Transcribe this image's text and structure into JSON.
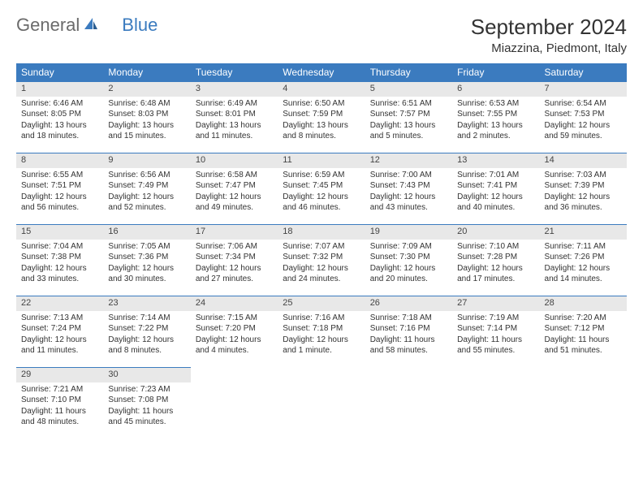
{
  "brand": {
    "part1": "General",
    "part2": "Blue"
  },
  "title": "September 2024",
  "location": "Miazzina, Piedmont, Italy",
  "colors": {
    "header_bg": "#3b7bbf",
    "header_text": "#ffffff",
    "daynum_bg": "#e8e8e8",
    "daynum_border": "#3b7bbf",
    "text": "#333333",
    "logo_gray": "#6b6b6b",
    "logo_blue": "#3b7bbf",
    "background": "#ffffff"
  },
  "weekdays": [
    "Sunday",
    "Monday",
    "Tuesday",
    "Wednesday",
    "Thursday",
    "Friday",
    "Saturday"
  ],
  "weeks": [
    [
      {
        "n": "1",
        "sr": "Sunrise: 6:46 AM",
        "ss": "Sunset: 8:05 PM",
        "dl1": "Daylight: 13 hours",
        "dl2": "and 18 minutes."
      },
      {
        "n": "2",
        "sr": "Sunrise: 6:48 AM",
        "ss": "Sunset: 8:03 PM",
        "dl1": "Daylight: 13 hours",
        "dl2": "and 15 minutes."
      },
      {
        "n": "3",
        "sr": "Sunrise: 6:49 AM",
        "ss": "Sunset: 8:01 PM",
        "dl1": "Daylight: 13 hours",
        "dl2": "and 11 minutes."
      },
      {
        "n": "4",
        "sr": "Sunrise: 6:50 AM",
        "ss": "Sunset: 7:59 PM",
        "dl1": "Daylight: 13 hours",
        "dl2": "and 8 minutes."
      },
      {
        "n": "5",
        "sr": "Sunrise: 6:51 AM",
        "ss": "Sunset: 7:57 PM",
        "dl1": "Daylight: 13 hours",
        "dl2": "and 5 minutes."
      },
      {
        "n": "6",
        "sr": "Sunrise: 6:53 AM",
        "ss": "Sunset: 7:55 PM",
        "dl1": "Daylight: 13 hours",
        "dl2": "and 2 minutes."
      },
      {
        "n": "7",
        "sr": "Sunrise: 6:54 AM",
        "ss": "Sunset: 7:53 PM",
        "dl1": "Daylight: 12 hours",
        "dl2": "and 59 minutes."
      }
    ],
    [
      {
        "n": "8",
        "sr": "Sunrise: 6:55 AM",
        "ss": "Sunset: 7:51 PM",
        "dl1": "Daylight: 12 hours",
        "dl2": "and 56 minutes."
      },
      {
        "n": "9",
        "sr": "Sunrise: 6:56 AM",
        "ss": "Sunset: 7:49 PM",
        "dl1": "Daylight: 12 hours",
        "dl2": "and 52 minutes."
      },
      {
        "n": "10",
        "sr": "Sunrise: 6:58 AM",
        "ss": "Sunset: 7:47 PM",
        "dl1": "Daylight: 12 hours",
        "dl2": "and 49 minutes."
      },
      {
        "n": "11",
        "sr": "Sunrise: 6:59 AM",
        "ss": "Sunset: 7:45 PM",
        "dl1": "Daylight: 12 hours",
        "dl2": "and 46 minutes."
      },
      {
        "n": "12",
        "sr": "Sunrise: 7:00 AM",
        "ss": "Sunset: 7:43 PM",
        "dl1": "Daylight: 12 hours",
        "dl2": "and 43 minutes."
      },
      {
        "n": "13",
        "sr": "Sunrise: 7:01 AM",
        "ss": "Sunset: 7:41 PM",
        "dl1": "Daylight: 12 hours",
        "dl2": "and 40 minutes."
      },
      {
        "n": "14",
        "sr": "Sunrise: 7:03 AM",
        "ss": "Sunset: 7:39 PM",
        "dl1": "Daylight: 12 hours",
        "dl2": "and 36 minutes."
      }
    ],
    [
      {
        "n": "15",
        "sr": "Sunrise: 7:04 AM",
        "ss": "Sunset: 7:38 PM",
        "dl1": "Daylight: 12 hours",
        "dl2": "and 33 minutes."
      },
      {
        "n": "16",
        "sr": "Sunrise: 7:05 AM",
        "ss": "Sunset: 7:36 PM",
        "dl1": "Daylight: 12 hours",
        "dl2": "and 30 minutes."
      },
      {
        "n": "17",
        "sr": "Sunrise: 7:06 AM",
        "ss": "Sunset: 7:34 PM",
        "dl1": "Daylight: 12 hours",
        "dl2": "and 27 minutes."
      },
      {
        "n": "18",
        "sr": "Sunrise: 7:07 AM",
        "ss": "Sunset: 7:32 PM",
        "dl1": "Daylight: 12 hours",
        "dl2": "and 24 minutes."
      },
      {
        "n": "19",
        "sr": "Sunrise: 7:09 AM",
        "ss": "Sunset: 7:30 PM",
        "dl1": "Daylight: 12 hours",
        "dl2": "and 20 minutes."
      },
      {
        "n": "20",
        "sr": "Sunrise: 7:10 AM",
        "ss": "Sunset: 7:28 PM",
        "dl1": "Daylight: 12 hours",
        "dl2": "and 17 minutes."
      },
      {
        "n": "21",
        "sr": "Sunrise: 7:11 AM",
        "ss": "Sunset: 7:26 PM",
        "dl1": "Daylight: 12 hours",
        "dl2": "and 14 minutes."
      }
    ],
    [
      {
        "n": "22",
        "sr": "Sunrise: 7:13 AM",
        "ss": "Sunset: 7:24 PM",
        "dl1": "Daylight: 12 hours",
        "dl2": "and 11 minutes."
      },
      {
        "n": "23",
        "sr": "Sunrise: 7:14 AM",
        "ss": "Sunset: 7:22 PM",
        "dl1": "Daylight: 12 hours",
        "dl2": "and 8 minutes."
      },
      {
        "n": "24",
        "sr": "Sunrise: 7:15 AM",
        "ss": "Sunset: 7:20 PM",
        "dl1": "Daylight: 12 hours",
        "dl2": "and 4 minutes."
      },
      {
        "n": "25",
        "sr": "Sunrise: 7:16 AM",
        "ss": "Sunset: 7:18 PM",
        "dl1": "Daylight: 12 hours",
        "dl2": "and 1 minute."
      },
      {
        "n": "26",
        "sr": "Sunrise: 7:18 AM",
        "ss": "Sunset: 7:16 PM",
        "dl1": "Daylight: 11 hours",
        "dl2": "and 58 minutes."
      },
      {
        "n": "27",
        "sr": "Sunrise: 7:19 AM",
        "ss": "Sunset: 7:14 PM",
        "dl1": "Daylight: 11 hours",
        "dl2": "and 55 minutes."
      },
      {
        "n": "28",
        "sr": "Sunrise: 7:20 AM",
        "ss": "Sunset: 7:12 PM",
        "dl1": "Daylight: 11 hours",
        "dl2": "and 51 minutes."
      }
    ],
    [
      {
        "n": "29",
        "sr": "Sunrise: 7:21 AM",
        "ss": "Sunset: 7:10 PM",
        "dl1": "Daylight: 11 hours",
        "dl2": "and 48 minutes."
      },
      {
        "n": "30",
        "sr": "Sunrise: 7:23 AM",
        "ss": "Sunset: 7:08 PM",
        "dl1": "Daylight: 11 hours",
        "dl2": "and 45 minutes."
      },
      {
        "empty": true
      },
      {
        "empty": true
      },
      {
        "empty": true
      },
      {
        "empty": true
      },
      {
        "empty": true
      }
    ]
  ]
}
